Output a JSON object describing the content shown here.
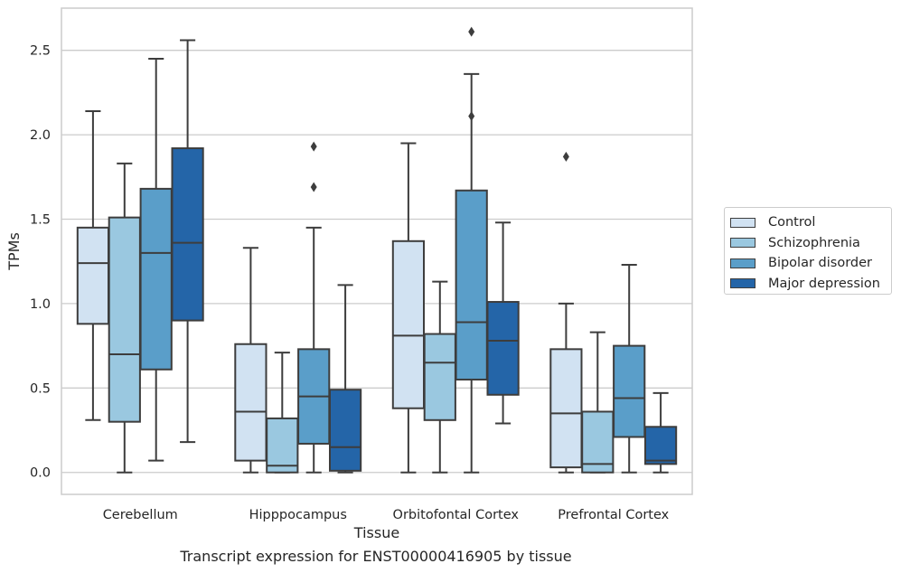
{
  "caption": "Transcript expression for ENST00000416905 by tissue",
  "chart_data": {
    "type": "box",
    "title": "",
    "xlabel": "Tissue",
    "ylabel": "TPMs",
    "ylim": [
      -0.13,
      2.75
    ],
    "yticks": [
      "0.0",
      "0.5",
      "1.0",
      "1.5",
      "2.0",
      "2.5"
    ],
    "grid": "horizontal",
    "legend_position": "right",
    "categories": [
      "Cerebellum",
      "Hipppocampus",
      "Orbitofontal Cortex",
      "Prefrontal Cortex"
    ],
    "series": [
      {
        "name": "Control",
        "color": "#d1e2f2",
        "boxes": [
          {
            "whislo": 0.31,
            "q1": 0.88,
            "med": 1.24,
            "q3": 1.45,
            "whishi": 2.14,
            "fliers": []
          },
          {
            "whislo": 0.0,
            "q1": 0.07,
            "med": 0.36,
            "q3": 0.76,
            "whishi": 1.33,
            "fliers": []
          },
          {
            "whislo": 0.0,
            "q1": 0.38,
            "med": 0.81,
            "q3": 1.37,
            "whishi": 1.95,
            "fliers": []
          },
          {
            "whislo": 0.0,
            "q1": 0.03,
            "med": 0.35,
            "q3": 0.73,
            "whishi": 1.0,
            "fliers": [
              1.87
            ]
          }
        ]
      },
      {
        "name": "Schizophrenia",
        "color": "#9ac8e0",
        "boxes": [
          {
            "whislo": 0.0,
            "q1": 0.3,
            "med": 0.7,
            "q3": 1.51,
            "whishi": 1.83,
            "fliers": []
          },
          {
            "whislo": 0.0,
            "q1": 0.0,
            "med": 0.04,
            "q3": 0.32,
            "whishi": 0.71,
            "fliers": []
          },
          {
            "whislo": 0.0,
            "q1": 0.31,
            "med": 0.65,
            "q3": 0.82,
            "whishi": 1.13,
            "fliers": []
          },
          {
            "whislo": 0.0,
            "q1": 0.0,
            "med": 0.05,
            "q3": 0.36,
            "whishi": 0.83,
            "fliers": []
          }
        ]
      },
      {
        "name": "Bipolar disorder",
        "color": "#5a9ec9",
        "boxes": [
          {
            "whislo": 0.07,
            "q1": 0.61,
            "med": 1.3,
            "q3": 1.68,
            "whishi": 2.45,
            "fliers": []
          },
          {
            "whislo": 0.0,
            "q1": 0.17,
            "med": 0.45,
            "q3": 0.73,
            "whishi": 1.45,
            "fliers": [
              1.69,
              1.93
            ]
          },
          {
            "whislo": 0.0,
            "q1": 0.55,
            "med": 0.89,
            "q3": 1.67,
            "whishi": 2.36,
            "fliers": [
              2.11,
              2.61
            ]
          },
          {
            "whislo": 0.0,
            "q1": 0.21,
            "med": 0.44,
            "q3": 0.75,
            "whishi": 1.23,
            "fliers": []
          }
        ]
      },
      {
        "name": "Major depression",
        "color": "#2465a8",
        "boxes": [
          {
            "whislo": 0.18,
            "q1": 0.9,
            "med": 1.36,
            "q3": 1.92,
            "whishi": 2.56,
            "fliers": []
          },
          {
            "whislo": 0.0,
            "q1": 0.01,
            "med": 0.15,
            "q3": 0.49,
            "whishi": 1.11,
            "fliers": []
          },
          {
            "whislo": 0.29,
            "q1": 0.46,
            "med": 0.78,
            "q3": 1.01,
            "whishi": 1.48,
            "fliers": []
          },
          {
            "whislo": 0.0,
            "q1": 0.05,
            "med": 0.07,
            "q3": 0.27,
            "whishi": 0.47,
            "fliers": []
          }
        ]
      }
    ]
  }
}
